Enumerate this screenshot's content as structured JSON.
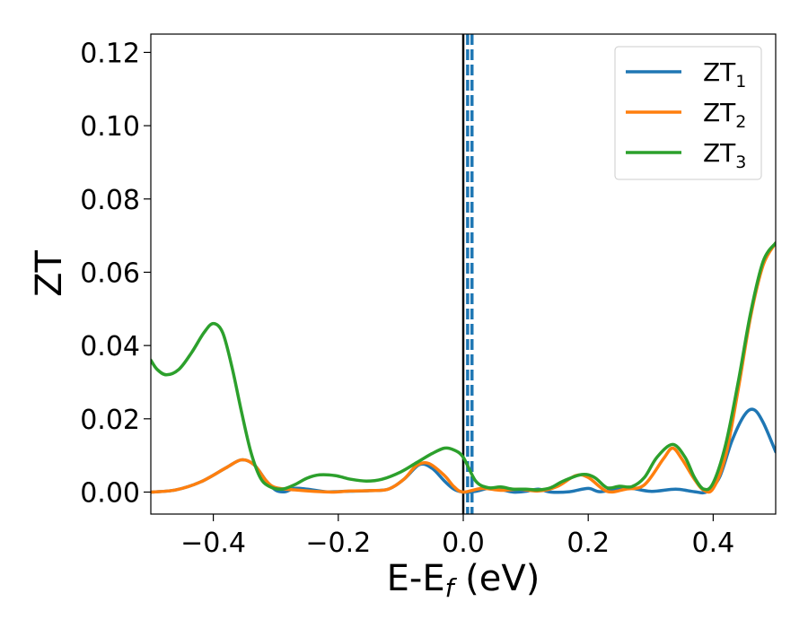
{
  "chart_data": {
    "type": "line",
    "xlabel": "E-E",
    "xlabel_sub": "f",
    "xlabel_unit": " (eV)",
    "ylabel": "ZT",
    "xlim": [
      -0.5,
      0.5
    ],
    "ylim": [
      -0.006,
      0.125
    ],
    "x_ticks": [
      -0.4,
      -0.2,
      0.0,
      0.2,
      0.4
    ],
    "x_tick_labels": [
      "−0.4",
      "−0.2",
      "0.0",
      "0.2",
      "0.4"
    ],
    "y_ticks": [
      0.0,
      0.02,
      0.04,
      0.06,
      0.08,
      0.1,
      0.12
    ],
    "y_tick_labels": [
      "0.00",
      "0.02",
      "0.04",
      "0.06",
      "0.08",
      "0.10",
      "0.12"
    ],
    "grid": false,
    "legend_position": "top-right",
    "vertical_lines": [
      {
        "x": 0.0,
        "style": "solid",
        "color": "#000000"
      },
      {
        "x": 0.007,
        "style": "dashed",
        "color": "#1f77b4"
      },
      {
        "x": 0.014,
        "style": "dashed",
        "color": "#1f77b4"
      }
    ],
    "series": [
      {
        "name": "ZT",
        "name_sub": "1",
        "color": "#1f77b4",
        "points": [
          [
            -0.5,
            0.0
          ],
          [
            -0.46,
            0.0006
          ],
          [
            -0.42,
            0.0028
          ],
          [
            -0.38,
            0.0066
          ],
          [
            -0.355,
            0.0088
          ],
          [
            -0.335,
            0.0075
          ],
          [
            -0.315,
            0.003
          ],
          [
            -0.3,
            0.0005
          ],
          [
            -0.285,
            0.0001
          ],
          [
            -0.27,
            0.001
          ],
          [
            -0.25,
            0.0008
          ],
          [
            -0.22,
            0.0001
          ],
          [
            -0.19,
            0.0002
          ],
          [
            -0.15,
            0.0004
          ],
          [
            -0.12,
            0.0008
          ],
          [
            -0.095,
            0.0035
          ],
          [
            -0.07,
            0.0075
          ],
          [
            -0.05,
            0.0065
          ],
          [
            -0.03,
            0.003
          ],
          [
            -0.015,
            0.0008
          ],
          [
            0.0,
            0.0
          ],
          [
            0.02,
            0.0002
          ],
          [
            0.04,
            0.001
          ],
          [
            0.06,
            0.0007
          ],
          [
            0.08,
            0.0
          ],
          [
            0.1,
            0.0002
          ],
          [
            0.12,
            0.0008
          ],
          [
            0.14,
            0.0
          ],
          [
            0.17,
            0.0001
          ],
          [
            0.2,
            0.001
          ],
          [
            0.22,
            0.0001
          ],
          [
            0.26,
            0.0012
          ],
          [
            0.3,
            0.0002
          ],
          [
            0.34,
            0.0008
          ],
          [
            0.37,
            0.0001
          ],
          [
            0.39,
            0.0001
          ],
          [
            0.41,
            0.004
          ],
          [
            0.43,
            0.014
          ],
          [
            0.45,
            0.021
          ],
          [
            0.465,
            0.0225
          ],
          [
            0.48,
            0.019
          ],
          [
            0.5,
            0.011
          ]
        ]
      },
      {
        "name": "ZT",
        "name_sub": "2",
        "color": "#ff7f0e",
        "points": [
          [
            -0.5,
            0.0
          ],
          [
            -0.46,
            0.0006
          ],
          [
            -0.42,
            0.0028
          ],
          [
            -0.38,
            0.0066
          ],
          [
            -0.355,
            0.0088
          ],
          [
            -0.335,
            0.0075
          ],
          [
            -0.315,
            0.003
          ],
          [
            -0.3,
            0.0012
          ],
          [
            -0.27,
            0.0006
          ],
          [
            -0.24,
            0.0002
          ],
          [
            -0.21,
            0.0
          ],
          [
            -0.18,
            0.0003
          ],
          [
            -0.15,
            0.0004
          ],
          [
            -0.12,
            0.0008
          ],
          [
            -0.095,
            0.0035
          ],
          [
            -0.075,
            0.0072
          ],
          [
            -0.055,
            0.0078
          ],
          [
            -0.03,
            0.0045
          ],
          [
            -0.015,
            0.0015
          ],
          [
            0.0,
            0.0
          ],
          [
            0.03,
            0.001
          ],
          [
            0.06,
            0.0005
          ],
          [
            0.09,
            0.0008
          ],
          [
            0.12,
            0.0003
          ],
          [
            0.15,
            0.0015
          ],
          [
            0.18,
            0.0045
          ],
          [
            0.2,
            0.004
          ],
          [
            0.23,
            0.0002
          ],
          [
            0.26,
            0.0008
          ],
          [
            0.29,
            0.002
          ],
          [
            0.32,
            0.009
          ],
          [
            0.335,
            0.012
          ],
          [
            0.35,
            0.009
          ],
          [
            0.37,
            0.0035
          ],
          [
            0.385,
            0.0005
          ],
          [
            0.4,
            0.001
          ],
          [
            0.42,
            0.01
          ],
          [
            0.44,
            0.028
          ],
          [
            0.46,
            0.048
          ],
          [
            0.48,
            0.062
          ],
          [
            0.5,
            0.068
          ]
        ]
      },
      {
        "name": "ZT",
        "name_sub": "3",
        "color": "#2ca02c",
        "points": [
          [
            -0.5,
            0.036
          ],
          [
            -0.49,
            0.0335
          ],
          [
            -0.475,
            0.032
          ],
          [
            -0.455,
            0.0335
          ],
          [
            -0.435,
            0.038
          ],
          [
            -0.415,
            0.0435
          ],
          [
            -0.4,
            0.046
          ],
          [
            -0.385,
            0.0435
          ],
          [
            -0.37,
            0.034
          ],
          [
            -0.355,
            0.022
          ],
          [
            -0.34,
            0.011
          ],
          [
            -0.325,
            0.004
          ],
          [
            -0.31,
            0.0015
          ],
          [
            -0.29,
            0.0008
          ],
          [
            -0.27,
            0.002
          ],
          [
            -0.25,
            0.0038
          ],
          [
            -0.23,
            0.0047
          ],
          [
            -0.205,
            0.0045
          ],
          [
            -0.18,
            0.0035
          ],
          [
            -0.155,
            0.003
          ],
          [
            -0.13,
            0.0035
          ],
          [
            -0.1,
            0.0055
          ],
          [
            -0.075,
            0.008
          ],
          [
            -0.05,
            0.0105
          ],
          [
            -0.03,
            0.012
          ],
          [
            -0.015,
            0.0115
          ],
          [
            0.0,
            0.0095
          ],
          [
            0.02,
            0.003
          ],
          [
            0.04,
            0.0012
          ],
          [
            0.06,
            0.0014
          ],
          [
            0.08,
            0.0008
          ],
          [
            0.1,
            0.0008
          ],
          [
            0.12,
            0.0006
          ],
          [
            0.14,
            0.0012
          ],
          [
            0.16,
            0.003
          ],
          [
            0.19,
            0.0048
          ],
          [
            0.21,
            0.004
          ],
          [
            0.23,
            0.0012
          ],
          [
            0.25,
            0.0016
          ],
          [
            0.27,
            0.0015
          ],
          [
            0.29,
            0.004
          ],
          [
            0.31,
            0.0095
          ],
          [
            0.335,
            0.013
          ],
          [
            0.355,
            0.0095
          ],
          [
            0.37,
            0.004
          ],
          [
            0.385,
            0.0008
          ],
          [
            0.4,
            0.0025
          ],
          [
            0.42,
            0.013
          ],
          [
            0.44,
            0.03
          ],
          [
            0.46,
            0.049
          ],
          [
            0.48,
            0.063
          ],
          [
            0.5,
            0.068
          ]
        ]
      }
    ]
  }
}
